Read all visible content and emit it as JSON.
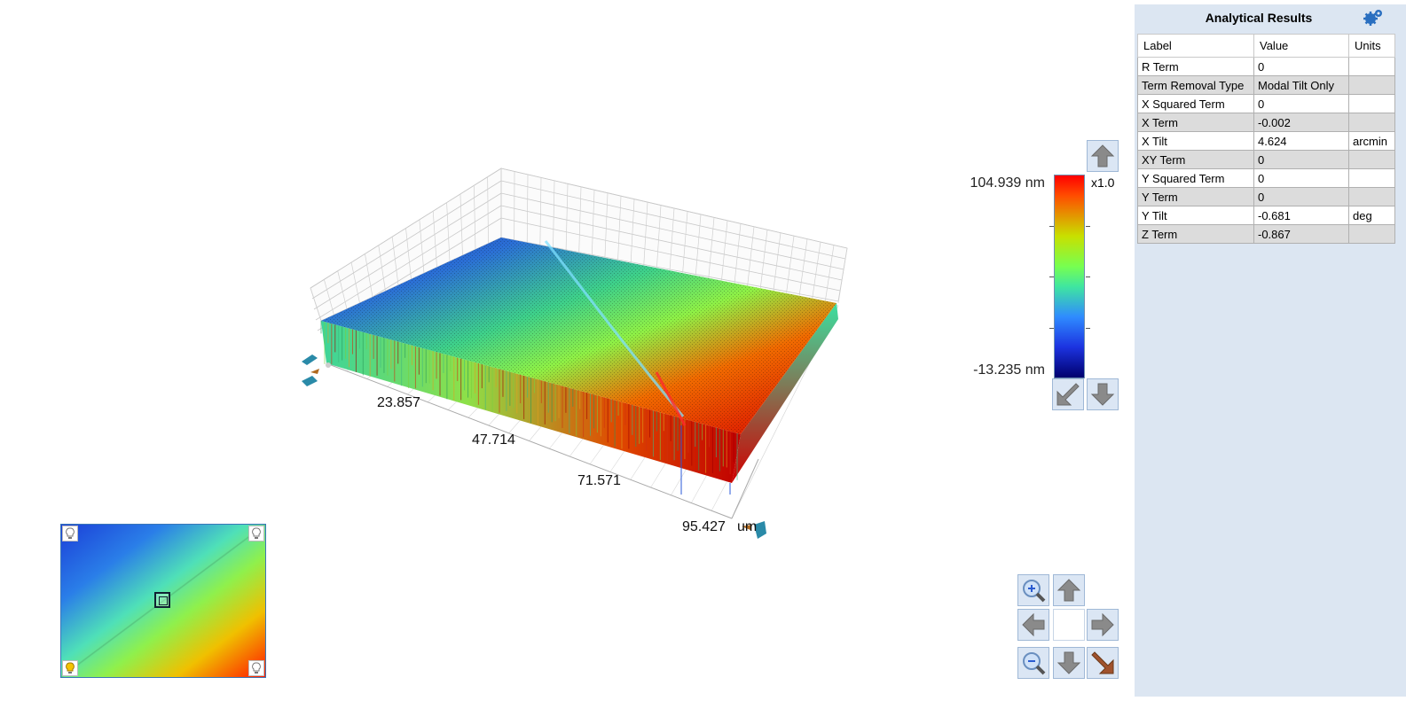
{
  "view3d": {
    "axis_ticks": [
      "23.857",
      "47.714",
      "71.571",
      "95.427"
    ],
    "axis_unit": "um"
  },
  "colorbar": {
    "max_label": "104.939 nm",
    "min_label": "-13.235 nm",
    "scale_label": "x1.0",
    "colors": [
      "#ff0000",
      "#c8e000",
      "#77ff50",
      "#2f8bff",
      "#00006e"
    ]
  },
  "panel": {
    "title": "Analytical Results",
    "settings_icon": "gear-icon",
    "headers": [
      "Label",
      "Value",
      "Units"
    ],
    "rows": [
      {
        "label": "R Term",
        "value": "0",
        "units": ""
      },
      {
        "label": "Term Removal Type",
        "value": "Modal Tilt Only",
        "units": ""
      },
      {
        "label": "X Squared Term",
        "value": "0",
        "units": ""
      },
      {
        "label": "X Term",
        "value": "-0.002",
        "units": ""
      },
      {
        "label": "X Tilt",
        "value": "4.624",
        "units": "arcmin"
      },
      {
        "label": "XY Term",
        "value": "0",
        "units": ""
      },
      {
        "label": "Y Squared Term",
        "value": "0",
        "units": ""
      },
      {
        "label": "Y Term",
        "value": "0",
        "units": ""
      },
      {
        "label": "Y Tilt",
        "value": "-0.681",
        "units": "deg"
      },
      {
        "label": "Z Term",
        "value": "-0.867",
        "units": ""
      }
    ]
  },
  "navigation": {
    "buttons": [
      "zoom-in-icon",
      "pan-up-icon",
      "pan-left-icon",
      "pan-right-icon",
      "zoom-out-icon",
      "pan-down-icon",
      "fit-view-icon"
    ]
  },
  "minimap": {
    "corner_icons": [
      "light-bulb-icon",
      "light-bulb-icon",
      "light-bulb-icon",
      "light-bulb-icon"
    ]
  }
}
